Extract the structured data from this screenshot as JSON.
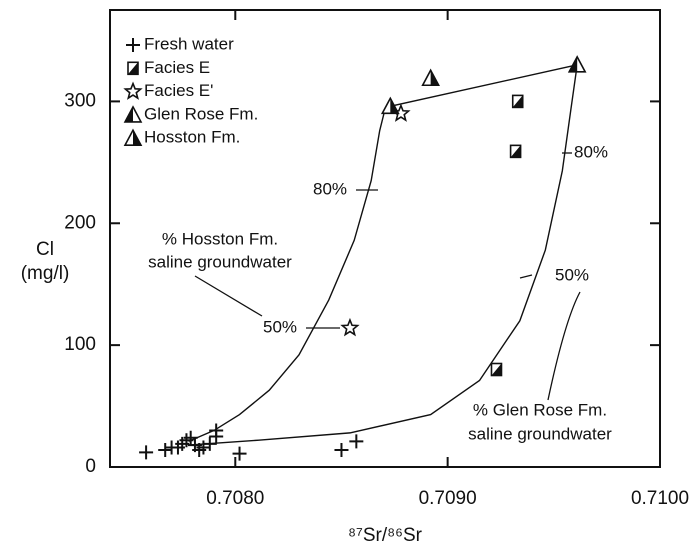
{
  "chart_data": {
    "type": "scatter",
    "x_label": "⁸⁷Sr/⁸⁶Sr",
    "y_label": [
      "Cl",
      "(mg/l)"
    ],
    "xlim": [
      0.70741,
      0.71
    ],
    "ylim": [
      0,
      375
    ],
    "xticks": [
      {
        "value": 0.708,
        "label": "0.7080"
      },
      {
        "value": 0.709,
        "label": "0.7090"
      },
      {
        "value": 0.71,
        "label": "0.7100"
      }
    ],
    "yticks": [
      0,
      100,
      200,
      300
    ],
    "legend": "upper left",
    "series": [
      {
        "name": "Fresh water",
        "marker": "plus",
        "color": "#111",
        "x": [
          0.70758,
          0.70767,
          0.7077,
          0.70773,
          0.70775,
          0.70777,
          0.70779,
          0.70781,
          0.70783,
          0.70785,
          0.70788,
          0.70791,
          0.70791,
          0.70802,
          0.7085,
          0.70857
        ],
        "values": [
          12,
          14,
          16,
          16,
          19,
          22,
          24,
          18,
          14,
          16,
          19,
          25,
          30,
          11,
          14,
          21
        ]
      },
      {
        "name": "Facies E",
        "marker": "square-half",
        "color": "#111",
        "x": [
          0.70933,
          0.70932,
          0.70923
        ],
        "values": [
          300,
          259,
          80
        ]
      },
      {
        "name": "Facies E'",
        "marker": "star",
        "color": "#111",
        "x": [
          0.70878,
          0.70854
        ],
        "values": [
          290,
          114
        ]
      },
      {
        "name": "Glen Rose Fm.",
        "marker": "tri-left",
        "color": "#111",
        "x": [
          0.70961
        ],
        "values": [
          330
        ]
      },
      {
        "name": "Hosston Fm.",
        "marker": "tri-right",
        "color": "#111",
        "x": [
          0.70873,
          0.70892
        ],
        "values": [
          296,
          319
        ]
      }
    ],
    "curves": [
      {
        "color": "#111",
        "x": [
          0.70778,
          0.7079,
          0.70802,
          0.70816,
          0.7083,
          0.70844,
          0.70856,
          0.70864,
          0.70868,
          0.7087,
          0.70873,
          0.70961
        ],
        "values": [
          21,
          30,
          43,
          63,
          92,
          137,
          186,
          235,
          276,
          290,
          296,
          330
        ]
      },
      {
        "color": "#111",
        "x": [
          0.70778,
          0.70811,
          0.70854,
          0.70892,
          0.70915,
          0.70934,
          0.70946,
          0.70954,
          0.70958,
          0.70961
        ],
        "values": [
          18,
          22,
          28,
          43,
          71,
          120,
          178,
          243,
          293,
          330
        ]
      }
    ],
    "annotations": [
      "80%",
      "50%",
      "80%",
      "50%"
    ],
    "notes": [
      [
        "% Hosston Fm.",
        "saline groundwater"
      ],
      [
        "% Glen Rose Fm.",
        "saline groundwater"
      ]
    ]
  }
}
